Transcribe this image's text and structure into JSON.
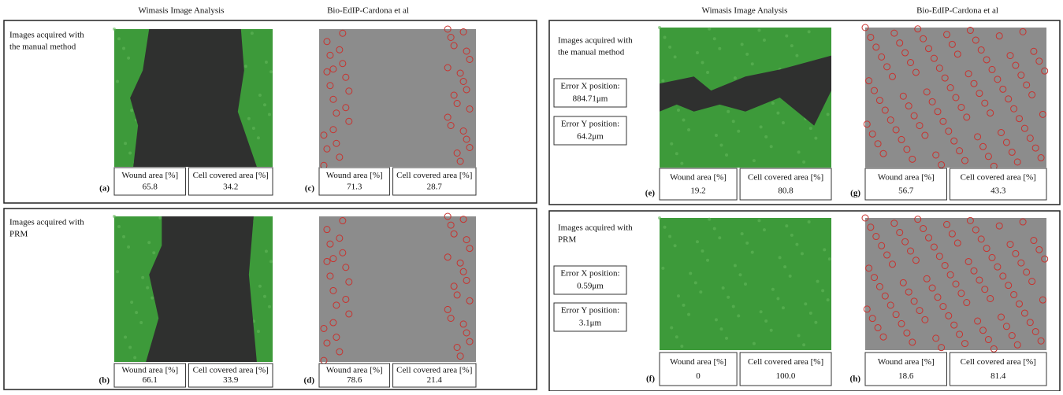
{
  "headers": {
    "left": [
      "Wimasis Image Analysis",
      "Bio-EdIP-Cardona et al"
    ],
    "right": [
      "Wimasis Image Analysis",
      "Bio-EdIP-Cardona et al"
    ]
  },
  "panels": [
    {
      "row_label": [
        "Images acquired with",
        "the manual method"
      ],
      "errors": [],
      "images": [
        {
          "letter": "(a)",
          "metrics": [
            {
              "label": "Wound area [%]",
              "value": "65.8"
            },
            {
              "label": "Cell covered area [%]",
              "value": "34.2"
            }
          ]
        },
        {
          "letter": "(c)",
          "metrics": [
            {
              "label": "Wound area [%]",
              "value": "71.3"
            },
            {
              "label": "Cell covered area [%]",
              "value": "28.7"
            }
          ]
        }
      ]
    },
    {
      "row_label": [
        "Images acquired with",
        "PRM"
      ],
      "errors": [],
      "images": [
        {
          "letter": "(b)",
          "metrics": [
            {
              "label": "Wound area [%]",
              "value": "66.1"
            },
            {
              "label": "Cell covered area [%]",
              "value": "33.9"
            }
          ]
        },
        {
          "letter": "(d)",
          "metrics": [
            {
              "label": "Wound area [%]",
              "value": "78.6"
            },
            {
              "label": "Cell covered area [%]",
              "value": "21.4"
            }
          ]
        }
      ]
    },
    {
      "row_label": [
        "Images acquired with",
        "the manual method"
      ],
      "errors": [
        [
          "Error X position:",
          "884.71μm"
        ],
        [
          "Error Y position:",
          "64.2μm"
        ]
      ],
      "images": [
        {
          "letter": "(e)",
          "metrics": [
            {
              "label": "Wound area [%]",
              "value": "19.2"
            },
            {
              "label": "Cell covered area [%]",
              "value": "80.8"
            }
          ]
        },
        {
          "letter": "(g)",
          "metrics": [
            {
              "label": "Wound area [%]",
              "value": "56.7"
            },
            {
              "label": "Cell covered area [%]",
              "value": "43.3"
            }
          ]
        }
      ]
    },
    {
      "row_label": [
        "Images acquired with",
        "PRM"
      ],
      "errors": [
        [
          "Error X position:",
          "0.59μm"
        ],
        [
          "Error Y position:",
          "3.1μm"
        ]
      ],
      "images": [
        {
          "letter": "(f)",
          "metrics": [
            {
              "label": "Wound area [%]",
              "value": "0"
            },
            {
              "label": "Cell covered area [%]",
              "value": "100.0"
            }
          ]
        },
        {
          "letter": "(h)",
          "metrics": [
            {
              "label": "Wound area [%]",
              "value": "18.6"
            },
            {
              "label": "Cell covered area [%]",
              "value": "81.4"
            }
          ]
        }
      ]
    }
  ]
}
